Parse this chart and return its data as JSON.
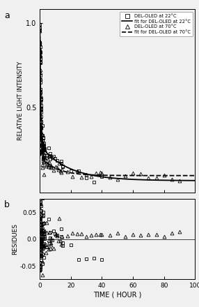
{
  "title_a": "a",
  "title_b": "b",
  "xlabel": "TIME ( HOUR )",
  "ylabel_a": "RELATIVE LIGHT INTENSITY",
  "ylabel_b": "RESIDUES",
  "xlim": [
    0,
    100
  ],
  "ylim_a": [
    0.0,
    1.08
  ],
  "ylim_b": [
    -0.075,
    0.075
  ],
  "yticks_a": [
    0.5,
    1.0
  ],
  "yticks_b": [
    -0.05,
    0.0,
    0.05
  ],
  "ytick_labels_b": [
    "-0.05",
    "0.0",
    "0.05"
  ],
  "xticks": [
    0,
    20,
    40,
    60,
    80,
    100
  ],
  "legend_labels": [
    "DEL-OLED at 22°C",
    "fit for DEL-OLED at 22°C",
    "DEL-OLED at 70°C",
    "fit for DEL-OLED at 70°C"
  ],
  "background_color": "#f0f0f0",
  "plot_bg": "#f0f0f0",
  "fit22_params": {
    "A1": 0.72,
    "tau1": 0.6,
    "A2": 0.21,
    "tau2": 18.0,
    "C": 0.07
  },
  "fit70_params": {
    "A1": 0.78,
    "tau1": 0.4,
    "A2": 0.12,
    "tau2": 10.0,
    "C": 0.1
  }
}
